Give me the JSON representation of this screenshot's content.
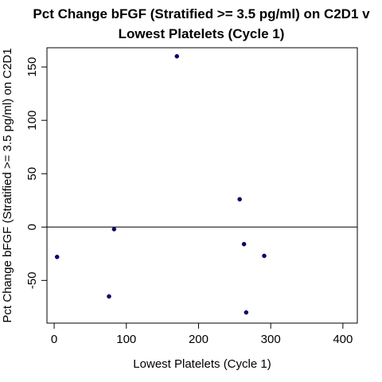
{
  "chart_data": {
    "type": "scatter",
    "title_line1": "Pct Change bFGF (Stratified >= 3.5 pg/ml) on C2D1 v",
    "title_line2": "Lowest Platelets (Cycle 1)",
    "xlabel": "Lowest Platelets (Cycle 1)",
    "ylabel": "Pct Change bFGF (Stratified >= 3.5 pg/ml) on C2D1",
    "xlim": [
      -10,
      420
    ],
    "ylim": [
      -90,
      168
    ],
    "x_ticks": [
      0,
      100,
      200,
      300,
      400
    ],
    "y_ticks": [
      -50,
      0,
      50,
      100,
      150
    ],
    "reference_line_y": 0,
    "grid": false,
    "point_color": "#00008b",
    "points": [
      {
        "x": 170,
        "y": 160
      },
      {
        "x": 257,
        "y": 26
      },
      {
        "x": 83,
        "y": -2
      },
      {
        "x": 263,
        "y": -16
      },
      {
        "x": 4,
        "y": -28
      },
      {
        "x": 291,
        "y": -27
      },
      {
        "x": 76,
        "y": -65
      },
      {
        "x": 266,
        "y": -80
      }
    ]
  }
}
